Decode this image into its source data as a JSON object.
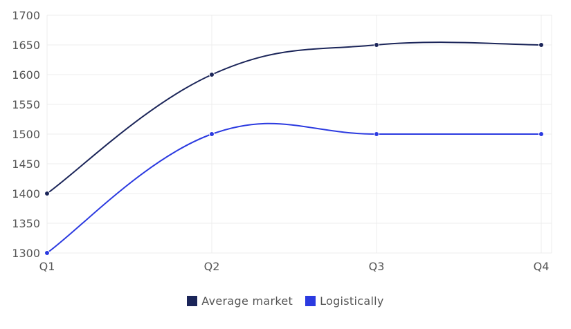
{
  "chart_data": {
    "type": "line",
    "categories": [
      "Q1",
      "Q2",
      "Q3",
      "Q4"
    ],
    "series": [
      {
        "name": "Average market",
        "values": [
          1400,
          1600,
          1650,
          1650
        ],
        "color": "#1b2559"
      },
      {
        "name": "Logistically",
        "values": [
          1300,
          1500,
          1500,
          1500
        ],
        "color": "#2b3ae0"
      }
    ],
    "ylim": [
      1300,
      1700
    ],
    "yticks": [
      1300,
      1350,
      1400,
      1450,
      1500,
      1550,
      1600,
      1650,
      1700
    ],
    "grid": true,
    "legend_position": "bottom-center",
    "title": "",
    "xlabel": "",
    "ylabel": ""
  }
}
